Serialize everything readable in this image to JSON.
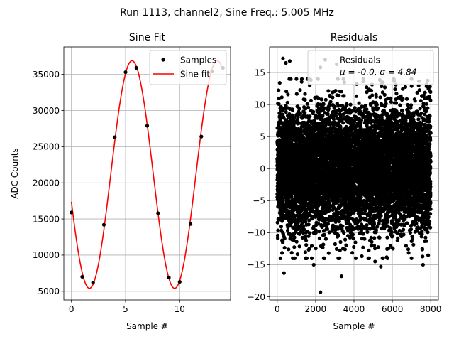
{
  "figure": {
    "suptitle": "Run 1113, channel2, Sine Freq.: 5.005 MHz"
  },
  "chart_data": [
    {
      "type": "line",
      "title": "Sine Fit",
      "xlabel": "Sample #",
      "ylabel": "ADC Counts",
      "xlim": [
        -0.7,
        14.7
      ],
      "ylim": [
        3800,
        38800
      ],
      "xticks": [
        0,
        5,
        10
      ],
      "yticks": [
        5000,
        10000,
        15000,
        20000,
        25000,
        30000,
        35000
      ],
      "grid": true,
      "legend": {
        "placement": "top-right",
        "entries": [
          "Samples",
          "Sine fit"
        ]
      },
      "series": [
        {
          "name": "Samples",
          "style": "markers",
          "color": "#000000",
          "x": [
            0,
            1,
            2,
            3,
            4,
            5,
            6,
            7,
            8,
            9,
            10,
            11,
            12,
            13,
            14
          ],
          "y": [
            15900,
            7000,
            6200,
            14200,
            26300,
            35300,
            35900,
            27900,
            15800,
            6900,
            6300,
            14300,
            26400,
            35400,
            35900
          ]
        },
        {
          "name": "Sine fit",
          "style": "line",
          "color": "#ff0000",
          "function": {
            "offset": 21150,
            "amplitude": 15750,
            "period": 7.87,
            "phase_center": 5.6,
            "x_range": [
              0,
              14
            ]
          }
        }
      ]
    },
    {
      "type": "scatter",
      "title": "Residuals",
      "xlabel": "Sample #",
      "ylabel": "",
      "xlim": [
        -400,
        8400
      ],
      "ylim": [
        -20.5,
        19
      ],
      "xticks": [
        0,
        2000,
        4000,
        6000,
        8000
      ],
      "yticks": [
        -20,
        -15,
        -10,
        -5,
        0,
        5,
        10,
        15
      ],
      "grid": true,
      "legend": {
        "placement": "top-right",
        "entries": [
          "Residuals",
          "μ = -0.0, σ = 4.84"
        ]
      },
      "series": [
        {
          "name": "Residuals",
          "color": "#000000",
          "n_points": 8000,
          "mean": -0.0,
          "std": 4.84,
          "x_range": [
            0,
            8000
          ],
          "outliers": [
            {
              "x": 300,
              "y": 17.2
            },
            {
              "x": 450,
              "y": 16.5
            },
            {
              "x": 650,
              "y": 16.8
            },
            {
              "x": 2250,
              "y": 15.8
            },
            {
              "x": 2500,
              "y": 17.0
            },
            {
              "x": 3100,
              "y": 16.3
            },
            {
              "x": 2250,
              "y": -19.3
            },
            {
              "x": 3350,
              "y": -16.8
            },
            {
              "x": 350,
              "y": -16.3
            },
            {
              "x": 5400,
              "y": -15.3
            },
            {
              "x": 1900,
              "y": -15.0
            },
            {
              "x": 7600,
              "y": -15.0
            },
            {
              "x": 5100,
              "y": -14.5
            }
          ]
        }
      ]
    }
  ]
}
